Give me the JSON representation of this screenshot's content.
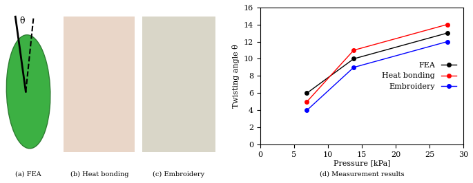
{
  "chart_data": {
    "type": "line",
    "x_label": "Pressure [kPa]",
    "y_label": "Twisting angle θ",
    "caption": "(d) Measurement results",
    "x": [
      6.9,
      13.8,
      27.6
    ],
    "series": [
      {
        "name": "FEA",
        "color": "#000000",
        "marker": "o",
        "values": [
          6,
          10,
          13
        ]
      },
      {
        "name": "Heat bonding",
        "color": "#ff0000",
        "marker": "o",
        "values": [
          5,
          11,
          14
        ]
      },
      {
        "name": "Embroidery",
        "color": "#0000ff",
        "marker": "o",
        "values": [
          4,
          9,
          12
        ]
      }
    ],
    "xlim": [
      0,
      30
    ],
    "xticks": [
      0,
      5,
      10,
      15,
      20,
      25,
      30
    ],
    "ylim": [
      0,
      16
    ],
    "yticks": [
      0,
      2,
      4,
      6,
      8,
      10,
      12,
      14,
      16
    ],
    "grid": false,
    "legend": "center right"
  },
  "panels": [
    {
      "caption": "(a) FEA",
      "label": "θ"
    },
    {
      "caption": "(b) Heat bonding"
    },
    {
      "caption": "(c) Embroidery"
    }
  ]
}
